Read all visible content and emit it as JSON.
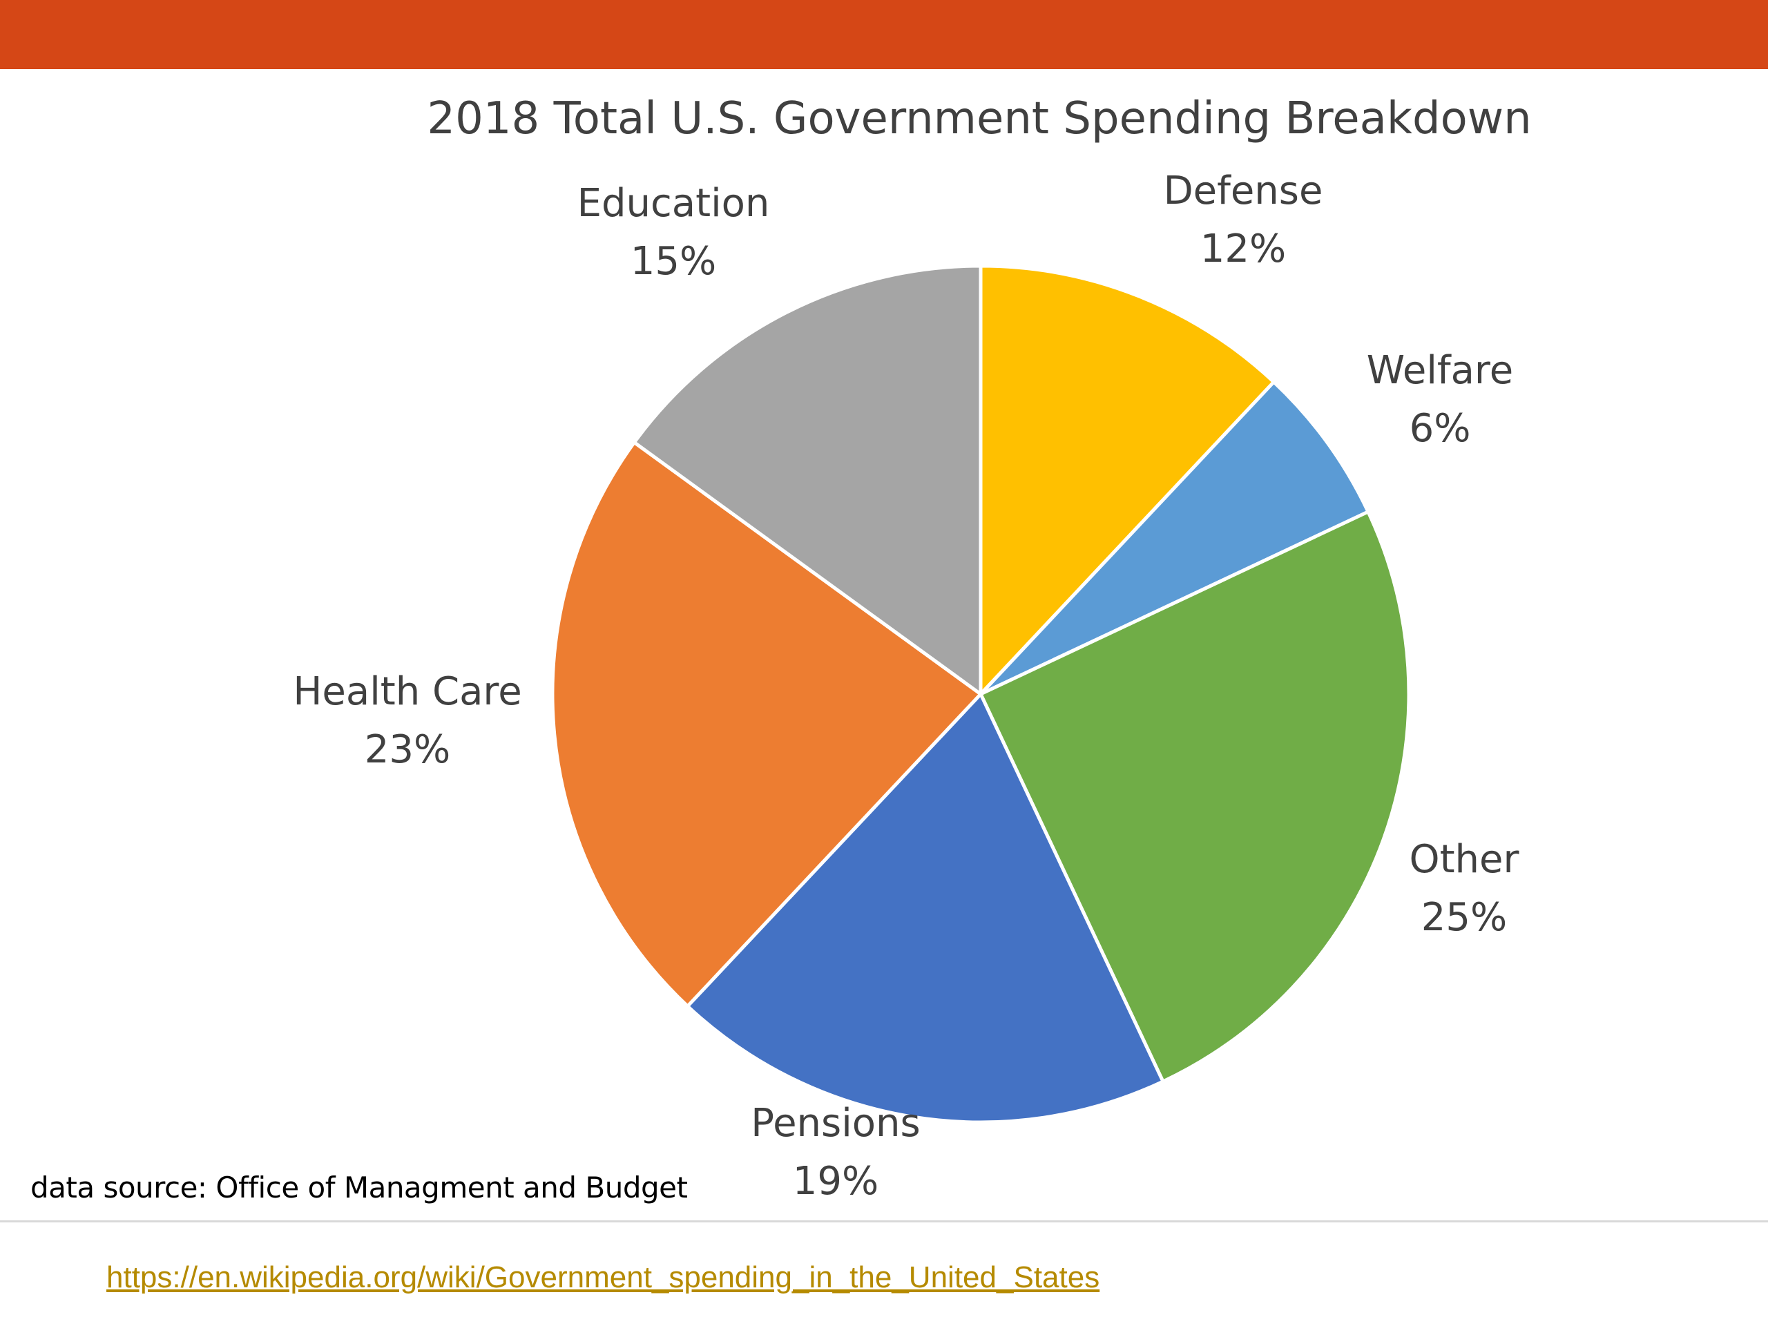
{
  "header_bar_color": "#d54716",
  "source_note": "data source: Office of Managment and Budget",
  "link": {
    "text": "https://en.wikipedia.org/wiki/Government_spending_in_the_United_States",
    "color": "#b58a00"
  },
  "chart_data": {
    "type": "pie",
    "title": "2018 Total U.S. Government Spending Breakdown",
    "unit": "%",
    "start_angle_deg": 0,
    "direction": "clockwise",
    "slices": [
      {
        "label": "Defense",
        "value": 12,
        "display": "12%",
        "color": "#ffc000"
      },
      {
        "label": "Welfare",
        "value": 6,
        "display": "6%",
        "color": "#5b9bd5"
      },
      {
        "label": "Other",
        "value": 25,
        "display": "25%",
        "color": "#70ad47"
      },
      {
        "label": "Pensions",
        "value": 19,
        "display": "19%",
        "color": "#4472c4"
      },
      {
        "label": "Health Care",
        "value": 23,
        "display": "23%",
        "color": "#ed7d31"
      },
      {
        "label": "Education",
        "value": 15,
        "display": "15%",
        "color": "#a5a5a5"
      }
    ]
  }
}
